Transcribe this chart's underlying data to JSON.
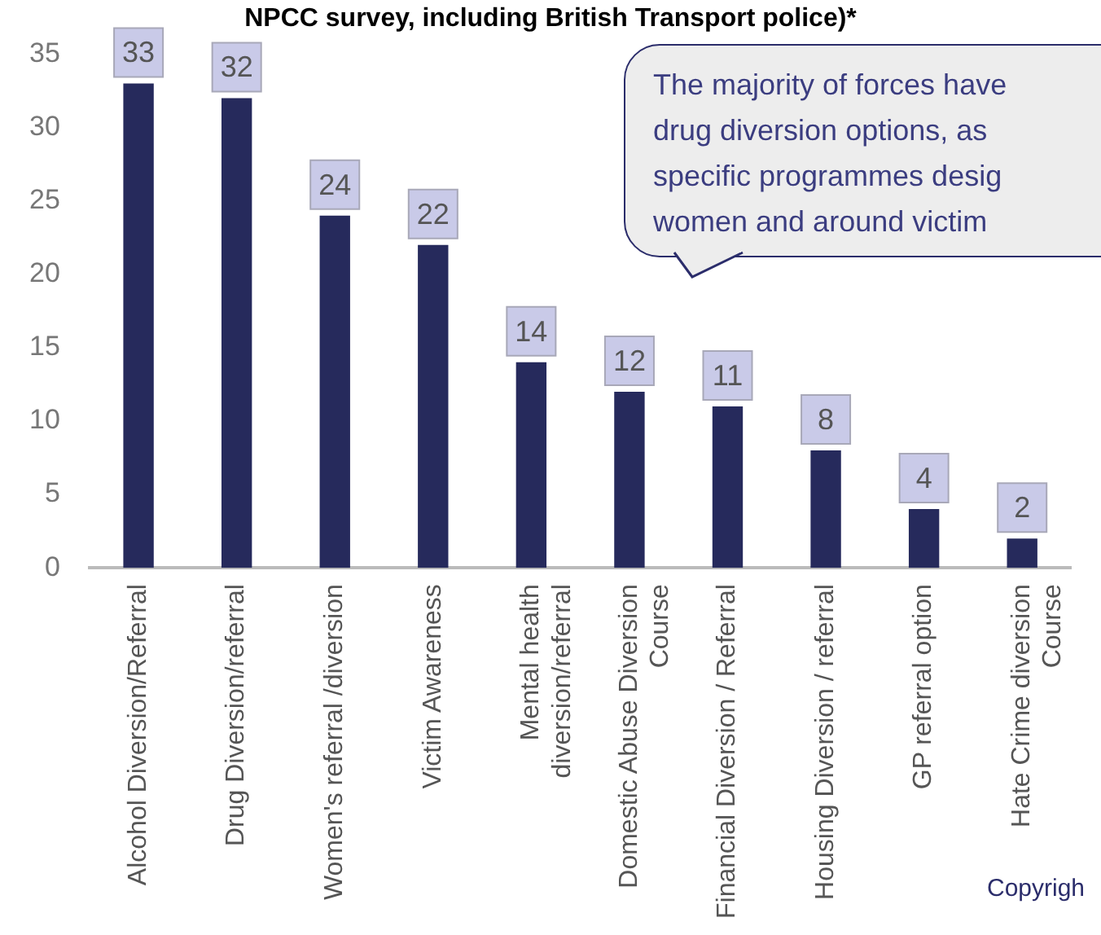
{
  "chart_data": {
    "type": "bar",
    "title": "NPCC survey, including British Transport police)*",
    "categories": [
      "Alcohol Diversion/Referral",
      "Drug Diversion/referral",
      "Women's referral /diversion",
      "Victim Awareness",
      "Mental health\ndiversion/referral",
      "Domestic Abuse Diversion\nCourse",
      "Financial Diversion / Referral",
      "Housing Diversion / referral",
      "GP referral option",
      "Hate Crime diversion\nCourse"
    ],
    "values": [
      33,
      32,
      24,
      22,
      14,
      12,
      11,
      8,
      4,
      2
    ],
    "color": "#262a5c",
    "ylim": [
      0,
      35
    ],
    "yticks": [
      0,
      5,
      10,
      15,
      20,
      25,
      30,
      35
    ],
    "grid": false,
    "legend": false,
    "data_labels": true,
    "annotations": [
      "The majority of forces have\ndrug diversion options, as\nspecific programmes desig\nwomen and around victim",
      "Copyrigh"
    ]
  }
}
